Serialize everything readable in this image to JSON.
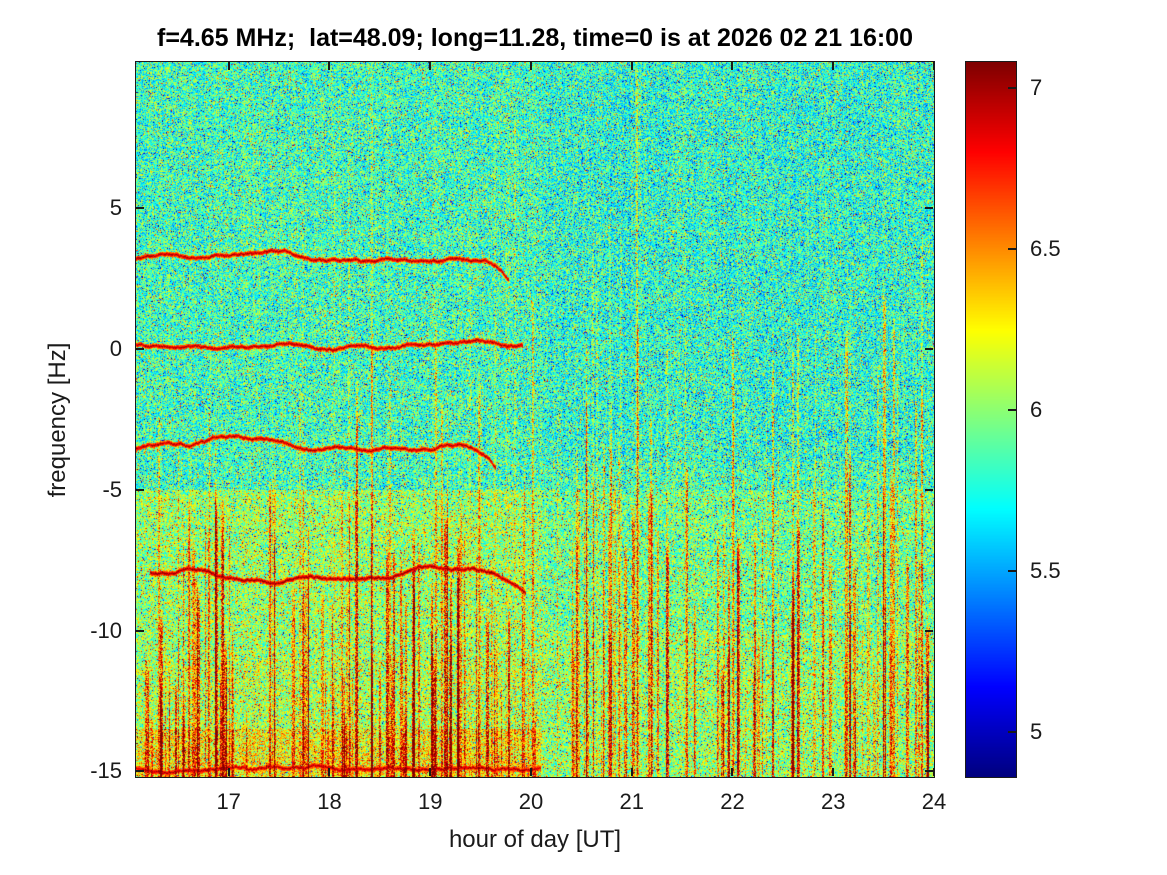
{
  "title": "f=4.65 MHz;  lat=48.09; long=11.28, time=0 is at 2026 02 21 16:00",
  "chart_data": {
    "type": "heatmap",
    "title": "f=4.65 MHz;  lat=48.09; long=11.28, time=0 is at 2026 02 21 16:00",
    "xlabel": "hour of day [UT]",
    "ylabel": "frequency [Hz]",
    "xlim": [
      16.08,
      24
    ],
    "ylim": [
      -15.2,
      10.2
    ],
    "xticks": [
      17,
      18,
      19,
      20,
      21,
      22,
      23,
      24
    ],
    "yticks": [
      5,
      0,
      -5,
      -10,
      -15
    ],
    "grid": false,
    "description": "Doppler spectrogram: noisy green/cyan background (jet colormap) with four wavy dark-red horizontal carrier traces before hour 20 and many red vertical interference streaks, densest below -5 Hz and after hour 20.",
    "colorbar": {
      "colormap": "jet",
      "clim": [
        4.86,
        7.08
      ],
      "ticks": [
        5,
        5.5,
        6,
        6.5,
        7
      ],
      "position": "right"
    },
    "background_noise": {
      "seed": 20260221,
      "pixel_seed": 1600,
      "base_value": 5.82,
      "spread": 0.72,
      "warm_speckle_prob": 0.1,
      "cold_speckle_prob": 0.06,
      "column_bias": 0.12,
      "regional_bias": [
        {
          "y_lt": -5,
          "delta": 0.1
        },
        {
          "y_lt": -5,
          "x_lt": 20.1,
          "delta": 0.1
        },
        {
          "y_lt": -11,
          "x_lt": 20.1,
          "delta": 0.05
        },
        {
          "y_lt": -13.5,
          "x_lt": 20.1,
          "delta": 0.18
        },
        {
          "y_lt": -10,
          "x_gt": 20.1,
          "delta": 0.08
        },
        {
          "y_gt": -4,
          "x_gt": 20.1,
          "delta": -0.05
        }
      ]
    },
    "carrier_traces": [
      {
        "y": 3.3,
        "x0": 16.08,
        "x1": 19.78,
        "amp": 0.22,
        "value": 7.0,
        "end_dip": -0.8,
        "seed": 11
      },
      {
        "y": 0.2,
        "x0": 16.08,
        "x1": 19.92,
        "amp": 0.15,
        "value": 7.0,
        "end_dip": -0.3,
        "seed": 22
      },
      {
        "y": -3.45,
        "x0": 16.08,
        "x1": 19.65,
        "amp": 0.28,
        "value": 7.0,
        "end_dip": -0.9,
        "seed": 33
      },
      {
        "y": -8.05,
        "x0": 16.22,
        "x1": 19.95,
        "amp": 0.32,
        "value": 7.05,
        "end_dip": -0.7,
        "seed": 44
      },
      {
        "y": -14.85,
        "x0": 16.08,
        "x1": 20.1,
        "amp": 0.06,
        "value": 7.0,
        "end_dip": 0,
        "seed": 55
      }
    ],
    "interference_streaks": {
      "seed": 777,
      "regions": [
        {
          "x0": 16.15,
          "x1": 20.05,
          "count": 90,
          "ytop_min": -13,
          "ytop_max": -4.5,
          "imin": 0.35,
          "imax": 0.9,
          "max_width": 3
        },
        {
          "x0": 16.3,
          "x1": 20.0,
          "count": 16,
          "ytop_min": -4,
          "ytop_max": -0.5,
          "imin": 0.25,
          "imax": 0.55,
          "max_width": 2
        },
        {
          "x0": 16.3,
          "x1": 19.9,
          "count": 10,
          "ytop_min": 4,
          "ytop_max": 9.5,
          "imin": 0.1,
          "imax": 0.22,
          "max_width": 2
        },
        {
          "x0": 20.1,
          "x1": 23.95,
          "count": 62,
          "ytop_min": -12,
          "ytop_max": -3,
          "imin": 0.3,
          "imax": 0.85,
          "max_width": 3
        },
        {
          "x0": 20.2,
          "x1": 23.95,
          "count": 22,
          "ytop_min": -3,
          "ytop_max": 2,
          "imin": 0.25,
          "imax": 0.6,
          "max_width": 2
        },
        {
          "x0": 20.3,
          "x1": 23.9,
          "count": 6,
          "ytop_min": 2,
          "ytop_max": 6,
          "imin": 0.15,
          "imax": 0.3,
          "max_width": 2
        }
      ],
      "explicit": [
        {
          "x": 20.02,
          "ytop": 2.0,
          "width": 2,
          "intensity": 0.5
        },
        {
          "x": 21.05,
          "ytop": 10.2,
          "width": 2,
          "intensity": 0.4
        },
        {
          "x": 20.55,
          "ytop": -1.5,
          "width": 2,
          "intensity": 0.5
        },
        {
          "x": 20.72,
          "ytop": -3.0,
          "width": 2,
          "intensity": 0.5
        },
        {
          "x": 18.42,
          "ytop": 0.8,
          "width": 2,
          "intensity": 0.45
        },
        {
          "x": 19.05,
          "ytop": 1.2,
          "width": 2,
          "intensity": 0.45
        },
        {
          "x": 23.12,
          "ytop": 1.0,
          "width": 3,
          "intensity": 0.6
        },
        {
          "x": 23.5,
          "ytop": 2.2,
          "width": 3,
          "intensity": 0.6
        },
        {
          "x": 23.6,
          "ytop": 1.4,
          "width": 2,
          "intensity": 0.55
        },
        {
          "x": 23.88,
          "ytop": -1.0,
          "width": 2,
          "intensity": 0.5
        }
      ]
    }
  }
}
